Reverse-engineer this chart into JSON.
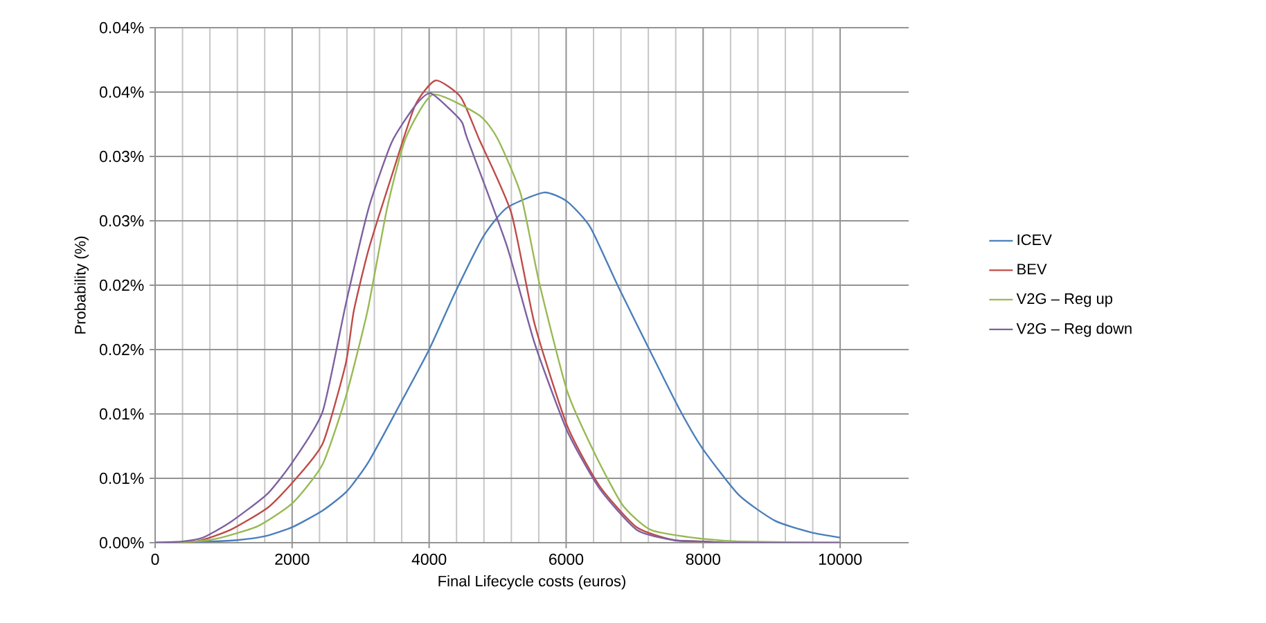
{
  "chart_data": {
    "type": "line",
    "xlabel": "Final Lifecycle costs (euros)",
    "ylabel": "Probability (%)",
    "xlim": [
      0,
      11000
    ],
    "xticks": [
      0,
      2000,
      4000,
      6000,
      8000,
      10000
    ],
    "ylim": [
      0,
      0.04
    ],
    "yticks": [
      {
        "value": 0,
        "label": "0.00%"
      },
      {
        "value": 0.005,
        "label": "0.01%"
      },
      {
        "value": 0.01,
        "label": "0.01%"
      },
      {
        "value": 0.015,
        "label": "0.02%"
      },
      {
        "value": 0.02,
        "label": "0.02%"
      },
      {
        "value": 0.025,
        "label": "0.03%"
      },
      {
        "value": 0.03,
        "label": "0.03%"
      },
      {
        "value": 0.035,
        "label": "0.04%"
      },
      {
        "value": 0.04,
        "label": "0.04%"
      }
    ],
    "grid": true,
    "legend": "right",
    "line_style": "solid",
    "series": [
      {
        "name": "ICEV",
        "color": "#4a7ebb",
        "x": [
          0,
          800,
          1200,
          1600,
          2000,
          2446,
          2800,
          3118,
          3589,
          4000,
          4386,
          4793,
          5132,
          5675,
          6014,
          6353,
          6759,
          7234,
          7641,
          7993,
          8522,
          9051,
          9577,
          10000
        ],
        "values": [
          0,
          0.0001,
          0.0002,
          0.0005,
          0.0012,
          0.0025,
          0.004,
          0.0063,
          0.0109,
          0.015,
          0.0195,
          0.0238,
          0.026,
          0.0272,
          0.0265,
          0.0245,
          0.0199,
          0.0148,
          0.0105,
          0.0073,
          0.0037,
          0.0017,
          0.0008,
          0.0004
        ]
      },
      {
        "name": "BEV",
        "color": "#be4b48",
        "x": [
          0,
          600,
          1100,
          1640,
          2010,
          2446,
          2782,
          2900,
          3118,
          3454,
          3790,
          4093,
          4462,
          4725,
          5200,
          5539,
          6014,
          6488,
          7031,
          7573,
          8000,
          8400,
          10000
        ],
        "values": [
          0,
          0.0001,
          0.001,
          0.0027,
          0.0047,
          0.0077,
          0.0139,
          0.018,
          0.0228,
          0.0285,
          0.0339,
          0.0359,
          0.0346,
          0.0314,
          0.0256,
          0.017,
          0.0091,
          0.0044,
          0.0012,
          0.0002,
          0.0001,
          0,
          0
        ]
      },
      {
        "name": "V2G – Reg up",
        "color": "#98b954",
        "x": [
          0,
          600,
          968,
          1505,
          2010,
          2446,
          2782,
          3100,
          3387,
          3656,
          4055,
          4731,
          4997,
          5336,
          5607,
          6014,
          6420,
          6827,
          7234,
          7844,
          8522,
          10000
        ],
        "values": [
          0,
          0.0001,
          0.0004,
          0.0013,
          0.0031,
          0.0061,
          0.0113,
          0.018,
          0.026,
          0.0314,
          0.0348,
          0.0332,
          0.0314,
          0.0271,
          0.0202,
          0.0118,
          0.0069,
          0.0029,
          0.001,
          0.0004,
          0.0001,
          0
        ]
      },
      {
        "name": "V2G – Reg down",
        "color": "#7d60a0",
        "x": [
          0,
          400,
          699,
          1100,
          1640,
          2010,
          2446,
          2782,
          3118,
          3454,
          3790,
          4026,
          4462,
          4556,
          5132,
          5539,
          6014,
          6488,
          7031,
          7573,
          8000,
          8400,
          10000
        ],
        "values": [
          0,
          0.0001,
          0.0004,
          0.0016,
          0.0038,
          0.0063,
          0.0102,
          0.0185,
          0.026,
          0.0311,
          0.0339,
          0.0349,
          0.0328,
          0.0314,
          0.0231,
          0.0155,
          0.0087,
          0.0042,
          0.001,
          0.0002,
          0.0001,
          0,
          0
        ]
      }
    ]
  }
}
